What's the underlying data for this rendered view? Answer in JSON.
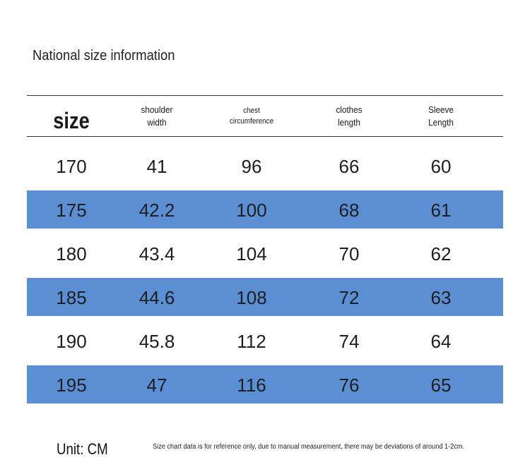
{
  "title": "National size information",
  "table": {
    "headers": [
      {
        "label": "size",
        "style": "size-h"
      },
      {
        "label": "shoulder\nwidth",
        "style": "sm"
      },
      {
        "label": "chest\ncircumference",
        "style": "xs"
      },
      {
        "label": "clothes\nlength",
        "style": "sm"
      },
      {
        "label": "Sleeve\nLength",
        "style": "sm"
      }
    ],
    "rows": [
      [
        "170",
        "41",
        "96",
        "66",
        "60"
      ],
      [
        "175",
        "42.2",
        "100",
        "68",
        "61"
      ],
      [
        "180",
        "43.4",
        "104",
        "70",
        "62"
      ],
      [
        "185",
        "44.6",
        "108",
        "72",
        "63"
      ],
      [
        "190",
        "45.8",
        "112",
        "74",
        "64"
      ],
      [
        "195",
        "47",
        "116",
        "76",
        "65"
      ]
    ],
    "band_color": "#5b8fd4"
  },
  "footer": {
    "unit": "Unit: CM",
    "note": "Size chart data is for reference only, due to manual measurement, there may be deviations of around 1-2cm."
  }
}
